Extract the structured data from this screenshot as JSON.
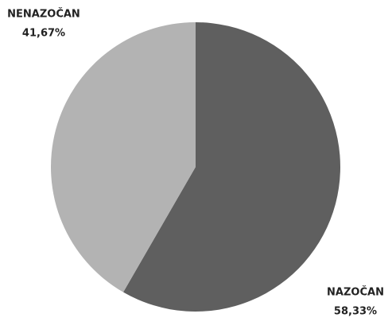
{
  "chart_data": {
    "type": "pie",
    "categories": [
      "NAZOČAN",
      "NENAZOČAN"
    ],
    "values": [
      58.33,
      41.67
    ],
    "value_labels": [
      "58,33%",
      "41,67%"
    ],
    "colors": [
      "#5f5f5f",
      "#b3b3b3"
    ]
  }
}
